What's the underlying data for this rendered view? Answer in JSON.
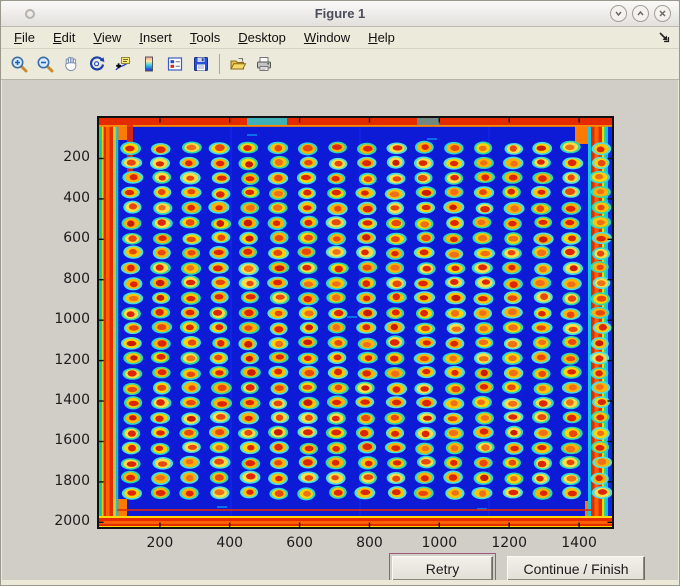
{
  "window": {
    "title": "Figure 1",
    "controls": [
      {
        "name": "shade",
        "glyph": "chevron-down"
      },
      {
        "name": "maximize",
        "glyph": "chevron-up"
      },
      {
        "name": "close",
        "glyph": "x"
      }
    ]
  },
  "menu": {
    "items": [
      {
        "label": "File"
      },
      {
        "label": "Edit"
      },
      {
        "label": "View"
      },
      {
        "label": "Insert"
      },
      {
        "label": "Tools"
      },
      {
        "label": "Desktop"
      },
      {
        "label": "Window"
      },
      {
        "label": "Help"
      }
    ]
  },
  "toolbar": {
    "icons": [
      "zoom-in",
      "zoom-out",
      "pan",
      "rotate-3d",
      "data-cursor",
      "insert-colorbar",
      "insert-legend",
      "save-figure",
      "open-file",
      "print-figure"
    ]
  },
  "buttons": {
    "retry_label": "Retry",
    "continue_label": "Continue / Finish"
  },
  "chart_data": {
    "type": "heatmap",
    "title": "",
    "xlabel": "",
    "ylabel": "",
    "x_ticks": [
      200,
      400,
      600,
      800,
      1000,
      1200,
      1400
    ],
    "y_ticks": [
      200,
      400,
      600,
      800,
      1000,
      1200,
      1400,
      1600,
      1800,
      2000
    ],
    "xlim": [
      20,
      1500
    ],
    "ylim": [
      -10,
      2033
    ],
    "y_axis_direction": "downward",
    "grid": "off",
    "colormap": "jet",
    "image_description": "Jet-colormap scan of a spotted assay plate: dark-blue field surrounded by a saturated red-orange border frame with thin green/cyan/yellow edge stripes; regular grid of elliptical spots with red-orange cores, yellow rings and cyan halos",
    "spot_grid": {
      "rows": 24,
      "cols": 17,
      "first_center_data_xy": [
        120,
        150
      ],
      "pitch_data_xy": [
        84,
        74
      ]
    },
    "palette": {
      "field_blue": "#0d1bd6",
      "border_red": "#e62a00",
      "border_orange": "#ff7a00",
      "edge_green": "#0ee060",
      "edge_yellow": "#ffd800",
      "halo_cyan": "#3adcd2",
      "ring_yellow": "#ffd400",
      "core_red": "#dd2606"
    }
  }
}
